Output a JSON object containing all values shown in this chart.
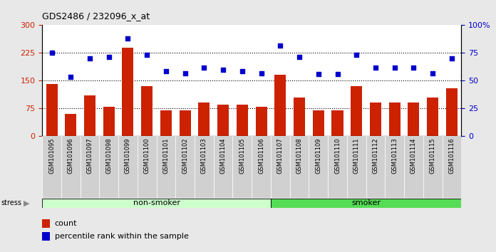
{
  "title": "GDS2486 / 232096_x_at",
  "categories": [
    "GSM101095",
    "GSM101096",
    "GSM101097",
    "GSM101098",
    "GSM101099",
    "GSM101100",
    "GSM101101",
    "GSM101102",
    "GSM101103",
    "GSM101104",
    "GSM101105",
    "GSM101106",
    "GSM101107",
    "GSM101108",
    "GSM101109",
    "GSM101110",
    "GSM101111",
    "GSM101112",
    "GSM101113",
    "GSM101114",
    "GSM101115",
    "GSM101116"
  ],
  "bar_values": [
    140,
    60,
    110,
    80,
    240,
    135,
    70,
    70,
    90,
    85,
    85,
    80,
    165,
    105,
    70,
    70,
    135,
    90,
    90,
    90,
    105,
    130
  ],
  "dot_values_left_scale": [
    225,
    160,
    210,
    215,
    265,
    220,
    175,
    170,
    185,
    180,
    175,
    170,
    245,
    215,
    167,
    167,
    220,
    185,
    185,
    185,
    170,
    210
  ],
  "bar_color": "#cc2200",
  "dot_color": "#0000cc",
  "non_smoker_count": 12,
  "left_ylim": [
    0,
    300
  ],
  "right_ylim": [
    0,
    100
  ],
  "left_yticks": [
    0,
    75,
    150,
    225,
    300
  ],
  "right_yticks": [
    0,
    25,
    50,
    75,
    100
  ],
  "right_yticklabels": [
    "0",
    "25",
    "50",
    "75",
    "100%"
  ],
  "hlines": [
    75,
    150,
    225
  ],
  "legend_count_label": "count",
  "legend_pct_label": "percentile rank within the sample",
  "background_color": "#e8e8e8",
  "plot_bg_color": "#ffffff",
  "tick_label_bg": "#d0d0d0",
  "ns_color": "#ccffcc",
  "smoker_color": "#55dd55",
  "stress_label": "stress"
}
